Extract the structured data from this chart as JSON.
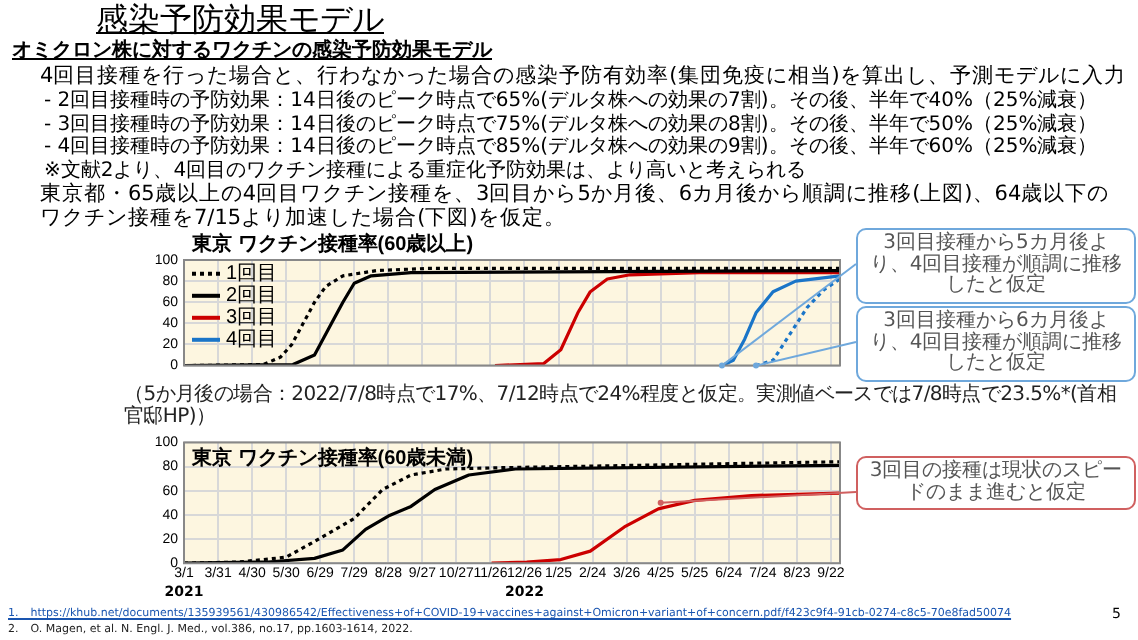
{
  "chart_data": [
    {
      "type": "other",
      "title": "感染予防効果モデル",
      "subtitle": "オミクロン株に対するワクチンの感染予防効果モデル",
      "annotations": [
        "4回目接種を行った場合と、行わなかった場合の感染予防有効率(集団免疫に相当)を算出し、予測モデルに入力",
        "- 2回目接種時の予防効果：14日後のピーク時点で65%(デルタ株への効果の7割)。その後、半年で40%（25%減衰）",
        "- 3回目接種時の予防効果：14日後のピーク時点で75%(デルタ株への効果の8割)。その後、半年で50%（25%減衰）",
        "- 4回目接種時の予防効果：14日後のピーク時点で85%(デルタ株への効果の9割)。その後、半年で60%（25%減衰）",
        "※文献2より、4回目のワクチン接種による重症化予防効果は、より高いと考えられる",
        "東京都・65歳以上の4回目ワクチン接種を、3回目から5か月後、6カ月後から順調に推移(上図)、64歳以下のワクチン接種を7/15より加速した場合(下図)を仮定。",
        "1.　https://khub.net/documents/135939561/430986542/Effectiveness+of+COVID-19+vaccines+against+Omicron+variant+of+concern.pdf/f423c9f4-91cb-0274-c8c5-70e8fad50074",
        "2.　O. Magen, et al. N. Engl. J. Med., vol.386, no.17, pp.1603-1614, 2022.",
        "5"
      ]
    },
    {
      "type": "line",
      "title": "東京 ワクチン接種率(60歳以上)",
      "xlim": [
        "2021-03-01",
        "2022-09-30"
      ],
      "xticks": [
        {
          "value": "2021-03-01",
          "label": null
        },
        {
          "value": "2021-03-31",
          "label": null
        },
        {
          "value": "2021-04-30",
          "label": null
        },
        {
          "value": "2021-05-30",
          "label": null
        },
        {
          "value": "2021-06-29",
          "label": null
        },
        {
          "value": "2021-07-29",
          "label": null
        },
        {
          "value": "2021-08-28",
          "label": null
        },
        {
          "value": "2021-09-27",
          "label": null
        },
        {
          "value": "2021-10-27",
          "label": null
        },
        {
          "value": "2021-11-26",
          "label": null
        },
        {
          "value": "2021-12-26",
          "label": null
        },
        {
          "value": "2022-01-25",
          "label": null
        },
        {
          "value": "2022-02-24",
          "label": null
        },
        {
          "value": "2022-03-26",
          "label": null
        },
        {
          "value": "2022-04-25",
          "label": null
        },
        {
          "value": "2022-05-25",
          "label": null
        },
        {
          "value": "2022-06-24",
          "label": null
        },
        {
          "value": "2022-07-24",
          "label": null
        },
        {
          "value": "2022-08-23",
          "label": null
        },
        {
          "value": "2022-09-22",
          "label": null
        }
      ],
      "ylim": [
        0,
        100
      ],
      "yticks": [
        0,
        20,
        40,
        60,
        80,
        100
      ],
      "grid": true,
      "legend": "left",
      "tick_labels": "y",
      "marker": "none",
      "series": [
        {
          "name": "1回目",
          "color": "#000000",
          "line_style": "dotted",
          "x": [
            "2021-03-01",
            "2021-05-10",
            "2021-05-25",
            "2021-06-04",
            "2021-06-14",
            "2021-06-24",
            "2021-07-04",
            "2021-07-19",
            "2021-08-18",
            "2021-10-01",
            "2022-09-30"
          ],
          "values": [
            0,
            1,
            8,
            20,
            40,
            60,
            75,
            85,
            90,
            92,
            92
          ]
        },
        {
          "name": "2回目",
          "color": "#000000",
          "line_style": "solid",
          "x": [
            "2021-03-01",
            "2021-06-05",
            "2021-06-24",
            "2021-07-09",
            "2021-07-19",
            "2021-07-29",
            "2021-08-13",
            "2021-09-17",
            "2022-09-30"
          ],
          "values": [
            0,
            1,
            10,
            40,
            60,
            78,
            85,
            88,
            90
          ]
        },
        {
          "name": "3回目",
          "color": "#cc0000",
          "line_style": "solid",
          "x": [
            "2021-11-30",
            "2022-01-12",
            "2022-01-27",
            "2022-02-11",
            "2022-02-22",
            "2022-03-09",
            "2022-03-29",
            "2022-05-29",
            "2022-09-30"
          ],
          "values": [
            0,
            2,
            15,
            50,
            70,
            82,
            86,
            88,
            88
          ]
        },
        {
          "name": "4回目",
          "color": "#1a75c8",
          "line_style": "solid",
          "x": [
            "2022-06-18",
            "2022-06-28",
            "2022-07-08",
            "2022-07-18",
            "2022-08-02",
            "2022-08-22",
            "2022-09-30"
          ],
          "values": [
            0,
            5,
            25,
            50,
            70,
            80,
            85
          ]
        },
        {
          "color": "#1a75c8",
          "line_style": "dotted",
          "x": [
            "2022-07-18",
            "2022-08-02",
            "2022-08-17",
            "2022-09-01",
            "2022-09-16",
            "2022-09-30"
          ],
          "values": [
            0,
            5,
            30,
            55,
            72,
            82
          ]
        }
      ],
      "annotations": [
        {
          "text": "3回目接種から5カ月後より、4回目接種が順調に推移したと仮定",
          "x": "2022-06-18",
          "y": 0
        },
        {
          "text": "3回目接種から6カ月後より、4回目接種が順調に推移したと仮定",
          "x": "2022-07-18",
          "y": 0
        },
        "（5か月後の場合：2022/7/8時点で17%、7/12時点で24%程度と仮定。実測値ベースでは7/8時点で23.5%*(首相官邸HP)）"
      ]
    },
    {
      "type": "line",
      "title": "東京 ワクチン接種率(60歳未満)",
      "xlim": [
        "2021-03-01",
        "2022-09-30"
      ],
      "xticks": [
        {
          "value": "2021-03-01",
          "label": "3/1"
        },
        {
          "value": "2021-03-31",
          "label": "3/31"
        },
        {
          "value": "2021-04-30",
          "label": "4/30"
        },
        {
          "value": "2021-05-30",
          "label": "5/30"
        },
        {
          "value": "2021-06-29",
          "label": "6/29"
        },
        {
          "value": "2021-07-29",
          "label": "7/29"
        },
        {
          "value": "2021-08-28",
          "label": "8/28"
        },
        {
          "value": "2021-09-27",
          "label": "9/27"
        },
        {
          "value": "2021-10-27",
          "label": "10/27"
        },
        {
          "value": "2021-11-26",
          "label": "11/26"
        },
        {
          "value": "2021-12-26",
          "label": "12/26"
        },
        {
          "value": "2022-01-25",
          "label": "1/25"
        },
        {
          "value": "2022-02-24",
          "label": "2/24"
        },
        {
          "value": "2022-03-26",
          "label": "3/26"
        },
        {
          "value": "2022-04-25",
          "label": "4/25"
        },
        {
          "value": "2022-05-25",
          "label": "5/25"
        },
        {
          "value": "2022-06-24",
          "label": "6/24"
        },
        {
          "value": "2022-07-24",
          "label": "7/24"
        },
        {
          "value": "2022-08-23",
          "label": "8/23"
        },
        {
          "value": "2022-09-22",
          "label": "9/22"
        }
      ],
      "ylim": [
        0,
        100
      ],
      "yticks": [
        0,
        20,
        40,
        60,
        80,
        100
      ],
      "grid": true,
      "marker": "none",
      "series": [
        {
          "color": "#000000",
          "line_style": "dotted",
          "x": [
            "2021-03-01",
            "2021-04-19",
            "2021-05-30",
            "2021-06-24",
            "2021-07-29",
            "2021-08-23",
            "2021-09-17",
            "2021-10-18",
            "2021-12-03",
            "2022-09-30"
          ],
          "values": [
            0,
            1,
            5,
            18,
            37,
            61,
            73,
            78,
            79,
            84
          ]
        },
        {
          "color": "#000000",
          "line_style": "solid",
          "x": [
            "2021-03-01",
            "2021-05-14",
            "2021-06-24",
            "2021-07-19",
            "2021-08-08",
            "2021-08-28",
            "2021-09-17",
            "2021-10-08",
            "2021-11-07",
            "2021-12-18",
            "2022-09-30"
          ],
          "values": [
            0,
            1,
            4,
            11,
            28,
            39,
            47,
            61,
            73,
            78,
            81
          ]
        },
        {
          "color": "#cc0000",
          "line_style": "solid",
          "x": [
            "2021-11-27",
            "2021-12-28",
            "2022-01-27",
            "2022-02-22",
            "2022-03-24",
            "2022-04-23",
            "2022-05-25",
            "2022-07-14",
            "2022-09-30"
          ],
          "values": [
            0,
            1,
            3,
            10,
            30,
            45,
            52,
            56,
            58
          ]
        }
      ],
      "annotations": [
        {
          "text": "3回目の接種は現状のスピードのまま進むと仮定",
          "x": "2022-04-25",
          "y": 50
        },
        "2021",
        "2022"
      ]
    }
  ]
}
